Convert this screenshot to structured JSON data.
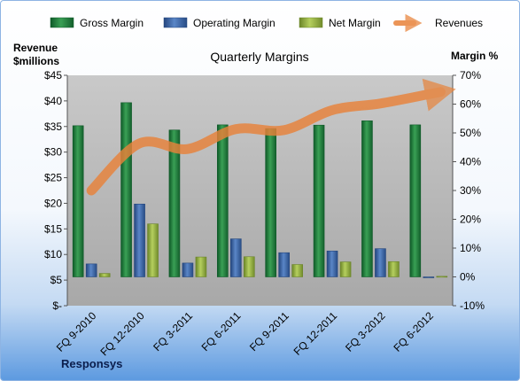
{
  "chart_data": {
    "type": "bar",
    "title": "Quarterly Margins",
    "categories": [
      "FQ 9-2010",
      "FQ 12-2010",
      "FQ 3-2011",
      "FQ 6-2011",
      "FQ 9-2011",
      "FQ 12-2011",
      "FQ 3-2012",
      "FQ 6-2012"
    ],
    "series": [
      {
        "name": "Gross Margin",
        "axis": "right",
        "type": "bar",
        "color": "#1f7a3d",
        "values": [
          52.5,
          60.5,
          51.0,
          52.8,
          51.5,
          52.7,
          54.2,
          52.8
        ]
      },
      {
        "name": "Operating Margin",
        "axis": "right",
        "type": "bar",
        "color": "#3d68ad",
        "values": [
          4.5,
          25.3,
          4.8,
          13.2,
          8.4,
          9.0,
          9.8,
          -0.3
        ]
      },
      {
        "name": "Net Margin",
        "axis": "right",
        "type": "bar",
        "color": "#95b53d",
        "values": [
          1.2,
          18.4,
          6.9,
          7.0,
          4.3,
          5.2,
          5.3,
          0.2
        ]
      },
      {
        "name": "Revenues",
        "axis": "left",
        "type": "line",
        "color": "#e8823a",
        "values": [
          22.5,
          31.7,
          30.6,
          34.5,
          34.3,
          38.2,
          39.5,
          41.3
        ]
      }
    ],
    "left_axis": {
      "label_line1": "Revenue",
      "label_line2": "$millions",
      "min": 0,
      "max": 45,
      "step": 5,
      "ticks": [
        "$-",
        "$5",
        "$10",
        "$15",
        "$20",
        "$25",
        "$30",
        "$35",
        "$40",
        "$45"
      ]
    },
    "right_axis": {
      "label": "Margin %",
      "min": -10,
      "max": 70,
      "step": 10,
      "ticks": [
        "-10%",
        "0%",
        "10%",
        "20%",
        "30%",
        "40%",
        "50%",
        "60%",
        "70%"
      ]
    },
    "grid": false,
    "legend_position": "top"
  },
  "source_label": "Responsys",
  "colors": {
    "plot_background": "#c4c4c4",
    "gross": "#1f7a3d",
    "operating": "#3d68ad",
    "net": "#95b53d",
    "revenue": "#e8823a"
  }
}
